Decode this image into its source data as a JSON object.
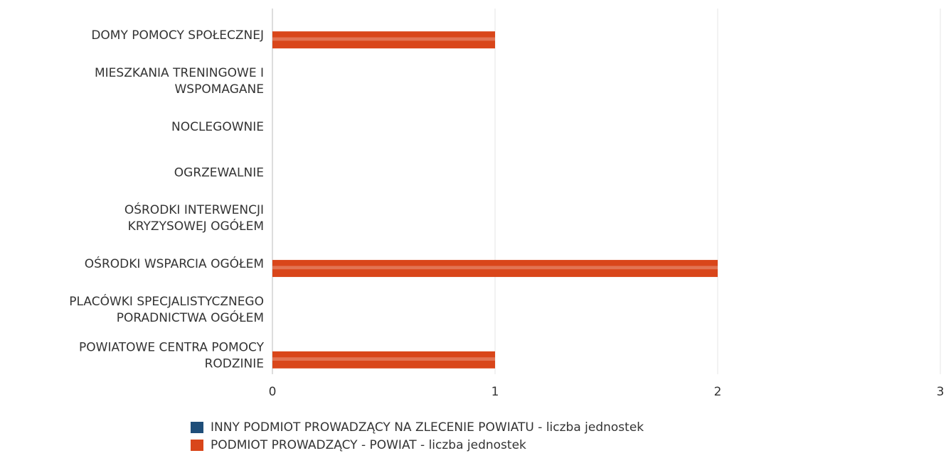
{
  "chart_data": {
    "type": "hbar",
    "categories": [
      "DOMY POMOCY SPOŁECZNEJ",
      "MIESZKANIA TRENINGOWE I\nWSPOMAGANE",
      "NOCLEGOWNIE",
      "OGRZEWALNIE",
      "OŚRODKI INTERWENCJI\nKRYZYSOWEJ OGÓŁEM",
      "OŚRODKI WSPARCIA OGÓŁEM",
      "PLACÓWKI SPECJALISTYCZNEGO\nPORADNICTWA OGÓŁEM",
      "POWIATOWE CENTRA POMOCY\nRODZINIE"
    ],
    "series": [
      {
        "name": "INNY PODMIOT PROWADZĄCY NA ZLECENIE POWIATU - liczba jednostek",
        "color": "#1f4e79",
        "values": [
          0,
          0,
          0,
          0,
          0,
          0,
          0,
          0
        ]
      },
      {
        "name": "PODMIOT PROWADZĄCY - POWIAT - liczba jednostek",
        "color": "#d9461a",
        "values": [
          1,
          0,
          0,
          0,
          0,
          2,
          0,
          1
        ]
      }
    ],
    "xlim": [
      0,
      3
    ],
    "xticks": [
      0,
      1,
      2,
      3
    ],
    "grid": true,
    "legend": "bottom"
  }
}
